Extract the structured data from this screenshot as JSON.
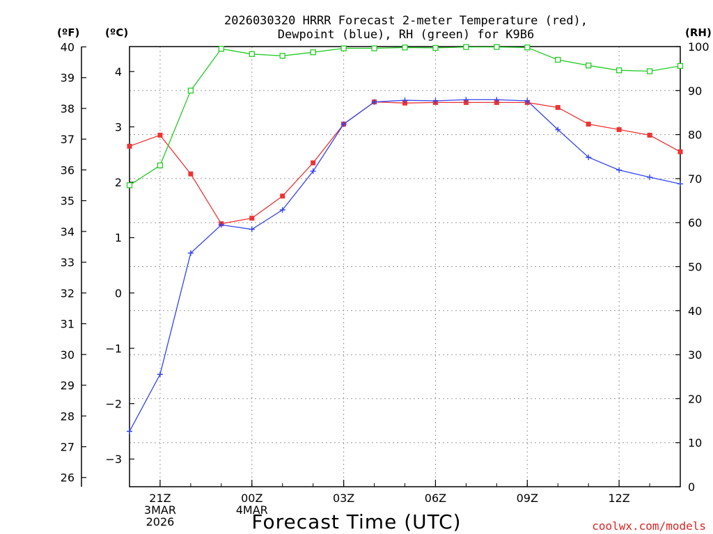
{
  "chart_data": {
    "type": "line",
    "title_line1": "2026030320 HRRR Forecast 2-meter Temperature (red),",
    "title_line2": "Dewpoint (blue), RH (green) for K9B6",
    "xlabel": "Forecast Time (UTC)",
    "left_outer_unit": "(ºF)",
    "left_inner_unit": "(ºC)",
    "right_unit": "(RH)",
    "watermark": "coolwx.com/models",
    "x_hours": [
      20,
      21,
      22,
      23,
      24,
      25,
      26,
      27,
      28,
      29,
      30,
      31,
      32,
      33,
      34,
      35,
      36,
      37,
      38
    ],
    "x_ticks": [
      {
        "hour": 21,
        "lines": [
          "21Z",
          "3MAR",
          "2026"
        ]
      },
      {
        "hour": 24,
        "lines": [
          "00Z",
          "4MAR"
        ]
      },
      {
        "hour": 27,
        "lines": [
          "03Z"
        ]
      },
      {
        "hour": 30,
        "lines": [
          "06Z"
        ]
      },
      {
        "hour": 33,
        "lines": [
          "09Z"
        ]
      },
      {
        "hour": 36,
        "lines": [
          "12Z"
        ]
      }
    ],
    "x_range": [
      20,
      38
    ],
    "celsius_range": [
      -3.5,
      4.45
    ],
    "celsius_ticks": [
      "−3",
      "−2",
      "−1",
      "0",
      "1",
      "2",
      "3",
      "4"
    ],
    "fahrenheit_ticks": [
      "26",
      "27",
      "28",
      "29",
      "30",
      "31",
      "32",
      "33",
      "34",
      "35",
      "36",
      "37",
      "38",
      "39",
      "40"
    ],
    "rh_range": [
      0,
      100
    ],
    "rh_ticks": [
      "0",
      "10",
      "20",
      "30",
      "40",
      "50",
      "60",
      "70",
      "80",
      "90",
      "100"
    ],
    "series": [
      {
        "name": "Temperature",
        "unit": "C",
        "color": "#ee3333",
        "marker": "filled-square",
        "values": [
          2.65,
          2.85,
          2.15,
          1.25,
          1.35,
          1.75,
          2.35,
          3.05,
          3.45,
          3.43,
          3.44,
          3.44,
          3.44,
          3.44,
          3.35,
          3.05,
          2.95,
          2.85,
          2.55
        ]
      },
      {
        "name": "Dewpoint",
        "unit": "C",
        "color": "#3344ee",
        "marker": "plus",
        "values": [
          -2.5,
          -1.47,
          0.72,
          1.23,
          1.15,
          1.5,
          2.2,
          3.05,
          3.45,
          3.48,
          3.47,
          3.49,
          3.49,
          3.47,
          2.95,
          2.45,
          2.22,
          2.09,
          1.97
        ]
      },
      {
        "name": "RH",
        "unit": "%",
        "color": "#22cc22",
        "marker": "open-square",
        "values": [
          68.5,
          73,
          90,
          99.5,
          98.3,
          97.9,
          98.7,
          99.6,
          99.6,
          99.8,
          99.7,
          99.9,
          99.9,
          99.8,
          97,
          95.7,
          94.6,
          94.4,
          95.6
        ]
      }
    ]
  }
}
